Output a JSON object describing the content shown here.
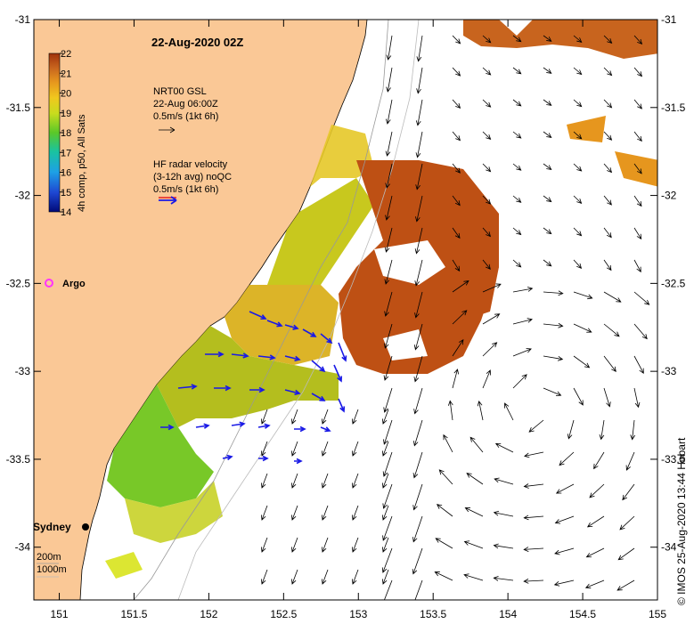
{
  "map": {
    "title": "22-Aug-2020 02Z",
    "credit": "© IMOS 25-Aug-2020 13:44 Hobart",
    "lon_ticks": [
      "151",
      "151.5",
      "152",
      "152.5",
      "153",
      "153.5",
      "154",
      "154.5",
      "155"
    ],
    "lat_ticks": [
      "-31",
      "-31.5",
      "-32",
      "-32.5",
      "-33",
      "-33.5",
      "-34"
    ],
    "lon_range": [
      150.83,
      155.0
    ],
    "lat_range": [
      -34.3,
      -31.0
    ]
  },
  "colorbar": {
    "label": "4h comp, p50, All Sats",
    "ticks": [
      "22",
      "21",
      "20",
      "19",
      "18",
      "17",
      "16",
      "15",
      "14"
    ],
    "range": [
      14,
      22
    ]
  },
  "legend": {
    "nrt_line1": "NRT00 GSL",
    "nrt_line2": "22-Aug 06:00Z",
    "nrt_line3": "0.5m/s (1kt 6h)",
    "hf_line1": "HF radar velocity",
    "hf_line2": "(3-12h avg) noQC",
    "hf_line3": "0.5m/s (1kt 6h)"
  },
  "places": {
    "argo": "Argo",
    "sydney": "Sydney",
    "depth_200": "200m",
    "depth_1000": "1000m"
  },
  "colors": {
    "land": "#fac896",
    "nrt_arrow": "#000000",
    "hf_arrow": "#1a1ae6",
    "argo": "#ff33ff"
  }
}
